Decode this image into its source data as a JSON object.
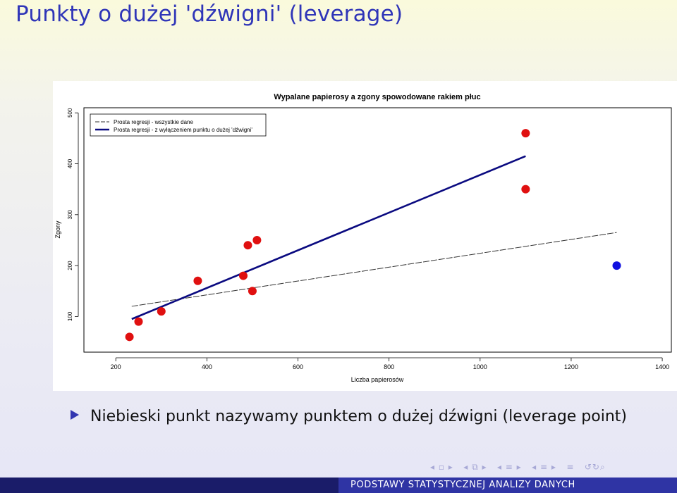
{
  "slide": {
    "title": "Punkty o dużej 'dźwigni' (leverage)",
    "bullet": "Niebieski punkt nazywamy punktem o dużej dźwigni (leverage point)",
    "footer": "PODSTAWY STATYSTYCZNEJ ANALIZY DANYCH"
  },
  "chart_data": {
    "type": "scatter",
    "title": "Wypalane papierosy a zgony spowodowane rakiem płuc",
    "xlabel": "Liczba papierosów",
    "ylabel": "Zgony",
    "xlim": [
      130,
      1420
    ],
    "ylim": [
      30,
      510
    ],
    "xticks": [
      200,
      400,
      600,
      800,
      1000,
      1200,
      1400
    ],
    "yticks": [
      100,
      200,
      300,
      400,
      500
    ],
    "grid": false,
    "legend_position": "top-left",
    "series": [
      {
        "name": "",
        "color": "#e01010",
        "points": [
          [
            230,
            60
          ],
          [
            250,
            90
          ],
          [
            300,
            110
          ],
          [
            380,
            170
          ],
          [
            480,
            180
          ],
          [
            490,
            240
          ],
          [
            500,
            150
          ],
          [
            510,
            250
          ],
          [
            1100,
            460
          ],
          [
            1100,
            350
          ]
        ]
      },
      {
        "name": "",
        "color": "#1010e0",
        "points": [
          [
            1300,
            200
          ]
        ]
      }
    ],
    "lines": [
      {
        "name": "Prosta regresji - wszystkie dane",
        "color": "#333333",
        "dashed": true,
        "from": [
          235,
          120
        ],
        "to": [
          1300,
          265
        ]
      },
      {
        "name": "Prosta regresji - z wyłączeniem punktu o dużej 'dźwigni'",
        "color": "#0a0a80",
        "dashed": false,
        "from": [
          235,
          95
        ],
        "to": [
          1100,
          415
        ]
      }
    ]
  }
}
